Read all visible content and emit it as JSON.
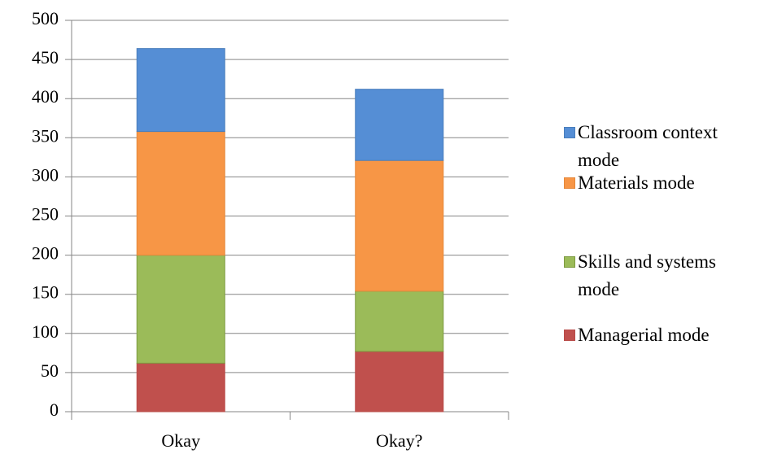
{
  "chart_data": {
    "type": "stacked_bar",
    "categories": [
      "Okay",
      "Okay?"
    ],
    "series": [
      {
        "name": "Managerial mode",
        "color": "#c0504d",
        "values": [
          62,
          77
        ]
      },
      {
        "name": "Skills and systems mode",
        "color": "#9bbb59",
        "values": [
          138,
          77
        ]
      },
      {
        "name": "Materials mode",
        "color": "#f79646",
        "values": [
          158,
          167
        ]
      },
      {
        "name": "Classroom context mode",
        "color": "#558ed5",
        "values": [
          106,
          91
        ]
      }
    ],
    "ylim": [
      0,
      500
    ],
    "yticks": [
      0,
      50,
      100,
      150,
      200,
      250,
      300,
      350,
      400,
      450,
      500
    ],
    "grid": true,
    "legend": "right"
  }
}
